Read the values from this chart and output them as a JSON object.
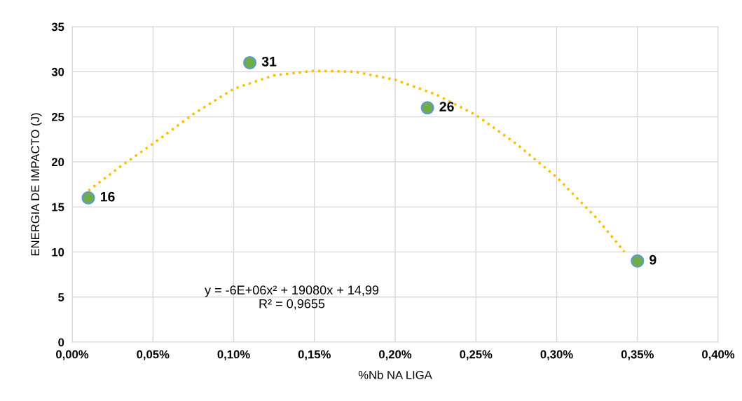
{
  "chart_data": {
    "type": "scatter",
    "xlabel": "%Nb NA LIGA",
    "ylabel": "ENERGIA DE IMPACTO (J)",
    "xlim": [
      0,
      0.004
    ],
    "ylim": [
      0,
      35
    ],
    "xticks": [
      {
        "value": 0,
        "label": "0,00%"
      },
      {
        "value": 0.0005,
        "label": "0,05%"
      },
      {
        "value": 0.001,
        "label": "0,10%"
      },
      {
        "value": 0.0015,
        "label": "0,15%"
      },
      {
        "value": 0.002,
        "label": "0,20%"
      },
      {
        "value": 0.0025,
        "label": "0,25%"
      },
      {
        "value": 0.003,
        "label": "0,30%"
      },
      {
        "value": 0.0035,
        "label": "0,35%"
      },
      {
        "value": 0.004,
        "label": "0,40%"
      }
    ],
    "yticks": [
      0,
      5,
      10,
      15,
      20,
      25,
      30,
      35
    ],
    "grid": true,
    "series": [
      {
        "color": "#70ad47",
        "marker": "circle",
        "data_labels": true,
        "x": [
          0.0001,
          0.0011,
          0.0022,
          0.0035
        ],
        "values": [
          16,
          31,
          26,
          9
        ]
      },
      {
        "type": "line",
        "color": "#ffc000",
        "line_style": "dotted",
        "marker": "none",
        "x": [
          0.0001,
          0.0003,
          0.0005,
          0.00075,
          0.001,
          0.00125,
          0.0015,
          0.00175,
          0.002,
          0.00225,
          0.0025,
          0.00275,
          0.003,
          0.00325,
          0.00342
        ],
        "values": [
          16.8,
          19.5,
          22.0,
          25.3,
          28.1,
          29.6,
          30.1,
          30.0,
          29.1,
          27.5,
          25.2,
          22.0,
          18.3,
          13.7,
          10.0
        ]
      }
    ],
    "annotations": [
      "y = -6E+06x² + 19080x + 14,99\nR² = 0,9655"
    ]
  }
}
